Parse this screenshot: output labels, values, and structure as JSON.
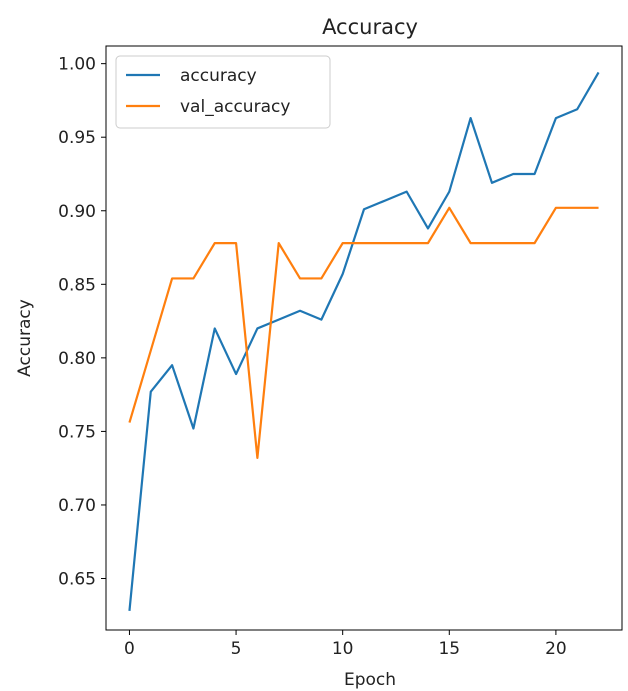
{
  "chart_data": {
    "type": "line",
    "title": "Accuracy",
    "xlabel": "Epoch",
    "ylabel": "Accuracy",
    "xlim": [
      -1.1,
      23.1
    ],
    "ylim": [
      0.615,
      1.012
    ],
    "xticks": [
      0,
      5,
      10,
      15,
      20
    ],
    "yticks": [
      0.65,
      0.7,
      0.75,
      0.8,
      0.85,
      0.9,
      0.95,
      1.0
    ],
    "ytick_labels": [
      "0.65",
      "0.70",
      "0.75",
      "0.80",
      "0.85",
      "0.90",
      "0.95",
      "1.00"
    ],
    "grid": false,
    "legend_position": "top-left",
    "x": [
      0,
      1,
      2,
      3,
      4,
      5,
      6,
      7,
      8,
      9,
      10,
      11,
      12,
      13,
      14,
      15,
      16,
      17,
      18,
      19,
      20,
      21,
      22
    ],
    "series": [
      {
        "name": "accuracy",
        "color": "#1f77b4",
        "values": [
          0.628,
          0.777,
          0.795,
          0.752,
          0.82,
          0.789,
          0.82,
          0.826,
          0.832,
          0.826,
          0.857,
          0.901,
          0.907,
          0.913,
          0.888,
          0.913,
          0.963,
          0.919,
          0.925,
          0.925,
          0.963,
          0.969,
          0.994
        ]
      },
      {
        "name": "val_accuracy",
        "color": "#ff7f0e",
        "values": [
          0.756,
          0.805,
          0.854,
          0.854,
          0.878,
          0.878,
          0.732,
          0.878,
          0.854,
          0.854,
          0.878,
          0.878,
          0.878,
          0.878,
          0.878,
          0.902,
          0.878,
          0.878,
          0.878,
          0.878,
          0.902,
          0.902,
          0.902
        ]
      }
    ]
  }
}
